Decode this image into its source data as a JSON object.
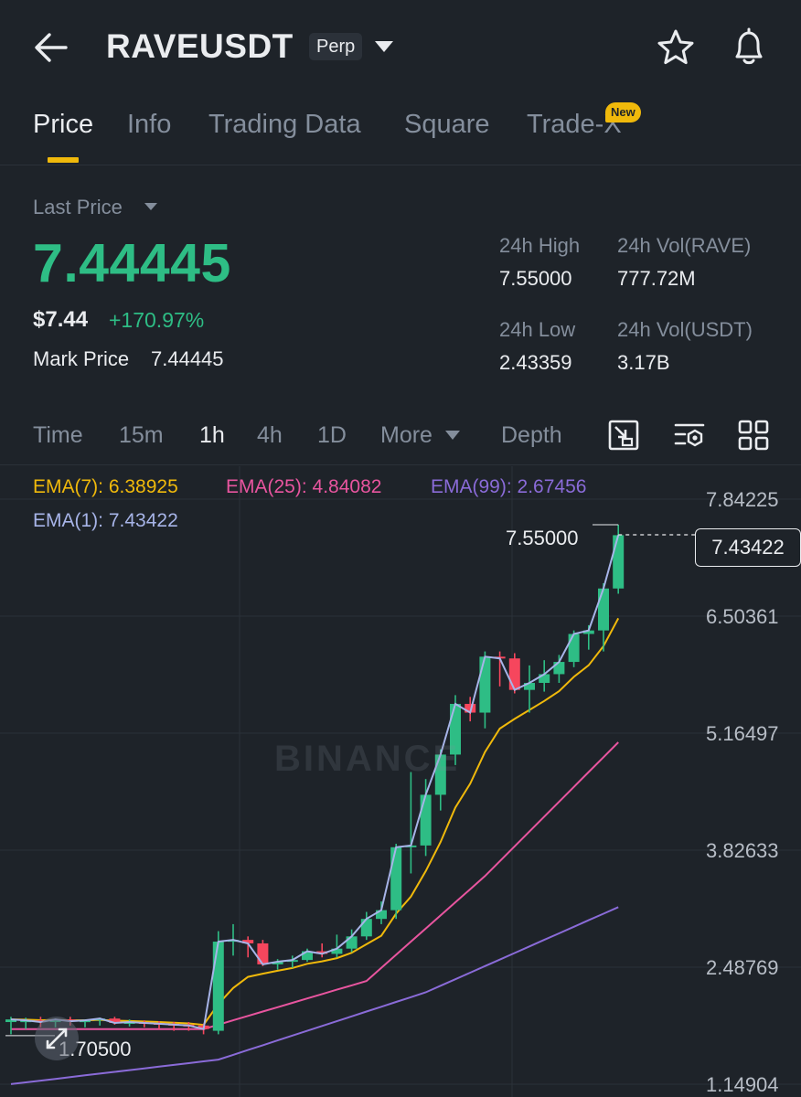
{
  "header": {
    "symbol": "RAVEUSDT",
    "contract_type": "Perp"
  },
  "tabs": [
    {
      "label": "Price",
      "active": true
    },
    {
      "label": "Info",
      "active": false
    },
    {
      "label": "Trading Data",
      "active": false
    },
    {
      "label": "Square",
      "active": false
    },
    {
      "label": "Trade-X",
      "active": false,
      "badge": "New"
    }
  ],
  "ticker": {
    "last_price_label": "Last Price",
    "last_price": "7.44445",
    "usd_price": "$7.44",
    "change_pct": "+170.97%",
    "mark_price_label": "Mark Price",
    "mark_price": "7.44445",
    "stats": {
      "high_label": "24h High",
      "high_value": "7.55000",
      "vol_base_label": "24h Vol(RAVE)",
      "vol_base_value": "777.72M",
      "low_label": "24h Low",
      "low_value": "2.43359",
      "vol_quote_label": "24h Vol(USDT)",
      "vol_quote_value": "3.17B"
    }
  },
  "timeframes": [
    {
      "label": "Time",
      "active": false
    },
    {
      "label": "15m",
      "active": false
    },
    {
      "label": "1h",
      "active": true
    },
    {
      "label": "4h",
      "active": false
    },
    {
      "label": "1D",
      "active": false
    },
    {
      "label": "More",
      "active": false
    },
    {
      "label": "Depth",
      "active": false
    }
  ],
  "indicators": {
    "ema7": "EMA(7): 6.38925",
    "ema25": "EMA(25): 4.84082",
    "ema99": "EMA(99): 2.67456",
    "ema1": "EMA(1): 7.43422"
  },
  "colors": {
    "up": "#2ebd85",
    "down": "#f6465d",
    "ema7": "#f0b90b",
    "ema25": "#e8559f",
    "ema99": "#8a6bd8",
    "ema1": "#a7b4e8",
    "accent": "#f0b90b"
  },
  "icons": [
    "back-arrow-icon",
    "caret-down-icon",
    "star-icon",
    "bell-icon",
    "chart-select-icon",
    "chart-settings-icon",
    "grid-icon",
    "expand-icon"
  ],
  "chart_data": {
    "type": "candlestick",
    "interval": "1h",
    "watermark": "BINANCE",
    "y_axis_ticks": [
      "7.84225",
      "6.50361",
      "5.16497",
      "3.82633",
      "2.48769",
      "1.14904"
    ],
    "ylim": [
      1.14904,
      7.84225
    ],
    "current_price": "7.43422",
    "high_marker": "7.55000",
    "low_marker": "1.70500",
    "candles": [
      {
        "o": 1.86,
        "h": 1.92,
        "l": 1.72,
        "c": 1.89
      },
      {
        "o": 1.87,
        "h": 1.91,
        "l": 1.78,
        "c": 1.88
      },
      {
        "o": 1.88,
        "h": 1.92,
        "l": 1.8,
        "c": 1.86
      },
      {
        "o": 1.86,
        "h": 1.9,
        "l": 1.8,
        "c": 1.89
      },
      {
        "o": 1.89,
        "h": 1.92,
        "l": 1.82,
        "c": 1.87
      },
      {
        "o": 1.87,
        "h": 1.89,
        "l": 1.8,
        "c": 1.88
      },
      {
        "o": 1.88,
        "h": 1.91,
        "l": 1.82,
        "c": 1.9
      },
      {
        "o": 1.9,
        "h": 1.92,
        "l": 1.83,
        "c": 1.85
      },
      {
        "o": 1.85,
        "h": 1.89,
        "l": 1.81,
        "c": 1.86
      },
      {
        "o": 1.86,
        "h": 1.88,
        "l": 1.8,
        "c": 1.85
      },
      {
        "o": 1.85,
        "h": 1.87,
        "l": 1.78,
        "c": 1.84
      },
      {
        "o": 1.84,
        "h": 1.86,
        "l": 1.76,
        "c": 1.83
      },
      {
        "o": 1.83,
        "h": 1.86,
        "l": 1.76,
        "c": 1.82
      },
      {
        "o": 1.82,
        "h": 1.84,
        "l": 1.72,
        "c": 1.78
      },
      {
        "o": 1.76,
        "h": 2.9,
        "l": 1.72,
        "c": 2.78
      },
      {
        "o": 2.78,
        "h": 2.98,
        "l": 2.62,
        "c": 2.8
      },
      {
        "o": 2.8,
        "h": 2.84,
        "l": 2.6,
        "c": 2.76
      },
      {
        "o": 2.76,
        "h": 2.8,
        "l": 2.5,
        "c": 2.52
      },
      {
        "o": 2.52,
        "h": 2.58,
        "l": 2.46,
        "c": 2.55
      },
      {
        "o": 2.55,
        "h": 2.62,
        "l": 2.48,
        "c": 2.57
      },
      {
        "o": 2.57,
        "h": 2.7,
        "l": 2.55,
        "c": 2.67
      },
      {
        "o": 2.67,
        "h": 2.76,
        "l": 2.6,
        "c": 2.64
      },
      {
        "o": 2.64,
        "h": 2.86,
        "l": 2.6,
        "c": 2.7
      },
      {
        "o": 2.7,
        "h": 2.92,
        "l": 2.66,
        "c": 2.84
      },
      {
        "o": 2.84,
        "h": 3.12,
        "l": 2.8,
        "c": 3.04
      },
      {
        "o": 3.04,
        "h": 3.24,
        "l": 2.98,
        "c": 3.14
      },
      {
        "o": 3.14,
        "h": 3.9,
        "l": 3.04,
        "c": 3.86
      },
      {
        "o": 3.86,
        "h": 4.72,
        "l": 3.56,
        "c": 3.88
      },
      {
        "o": 3.88,
        "h": 4.64,
        "l": 3.76,
        "c": 4.46
      },
      {
        "o": 4.46,
        "h": 4.98,
        "l": 4.28,
        "c": 4.92
      },
      {
        "o": 4.92,
        "h": 5.6,
        "l": 4.8,
        "c": 5.5
      },
      {
        "o": 5.5,
        "h": 5.58,
        "l": 5.3,
        "c": 5.4
      },
      {
        "o": 5.4,
        "h": 6.1,
        "l": 5.22,
        "c": 6.04
      },
      {
        "o": 6.04,
        "h": 6.1,
        "l": 5.7,
        "c": 6.02
      },
      {
        "o": 6.02,
        "h": 6.08,
        "l": 5.62,
        "c": 5.66
      },
      {
        "o": 5.66,
        "h": 5.94,
        "l": 5.4,
        "c": 5.74
      },
      {
        "o": 5.74,
        "h": 6.0,
        "l": 5.64,
        "c": 5.84
      },
      {
        "o": 5.84,
        "h": 6.06,
        "l": 5.74,
        "c": 5.98
      },
      {
        "o": 5.98,
        "h": 6.34,
        "l": 5.92,
        "c": 6.3
      },
      {
        "o": 6.3,
        "h": 6.4,
        "l": 6.12,
        "c": 6.34
      },
      {
        "o": 6.34,
        "h": 6.88,
        "l": 6.1,
        "c": 6.82
      },
      {
        "o": 6.82,
        "h": 7.55,
        "l": 6.76,
        "c": 7.43
      }
    ]
  }
}
